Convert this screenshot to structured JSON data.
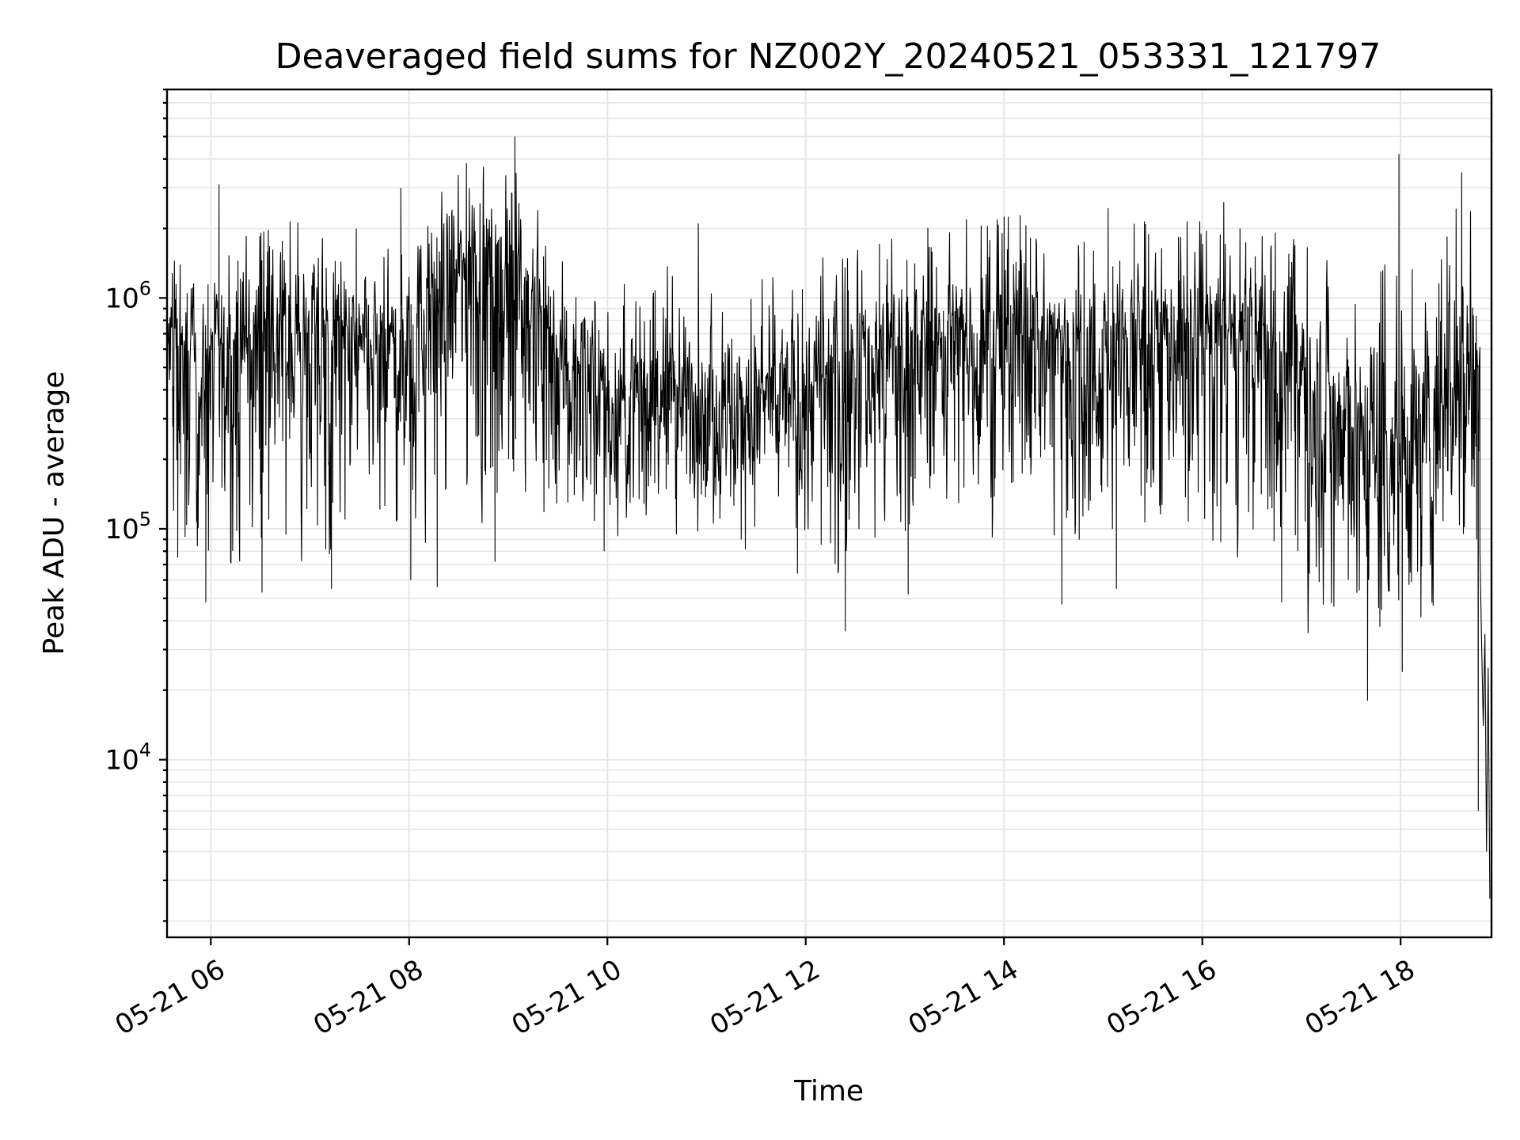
{
  "chart_data": {
    "type": "line",
    "title": "Deaveraged field sums for NZ002Y_20240521_053331_121797",
    "xlabel": "Time",
    "ylabel": "Peak ADU - average",
    "yscale": "log",
    "grid": true,
    "line_color": "#000000",
    "grid_color": "#e6e6e6",
    "xlim": [
      "2024-05-21 05:33:31",
      "2024-05-21 18:55:00"
    ],
    "ylim": [
      1700,
      8000000
    ],
    "x_ticks": [
      {
        "value": "2024-05-21 06:00",
        "label": "05-21 06"
      },
      {
        "value": "2024-05-21 08:00",
        "label": "05-21 08"
      },
      {
        "value": "2024-05-21 10:00",
        "label": "05-21 10"
      },
      {
        "value": "2024-05-21 12:00",
        "label": "05-21 12"
      },
      {
        "value": "2024-05-21 14:00",
        "label": "05-21 14"
      },
      {
        "value": "2024-05-21 16:00",
        "label": "05-21 16"
      },
      {
        "value": "2024-05-21 18:00",
        "label": "05-21 18"
      }
    ],
    "y_ticks": [
      {
        "value": 10000,
        "base": "10",
        "exp": "4"
      },
      {
        "value": 100000,
        "base": "10",
        "exp": "5"
      },
      {
        "value": 1000000,
        "base": "10",
        "exp": "6"
      }
    ],
    "envelope": {
      "x": [
        "2024-05-21 05:34",
        "2024-05-21 05:45",
        "2024-05-21 06:00",
        "2024-05-21 06:20",
        "2024-05-21 06:40",
        "2024-05-21 07:00",
        "2024-05-21 07:20",
        "2024-05-21 07:40",
        "2024-05-21 08:00",
        "2024-05-21 08:20",
        "2024-05-21 08:40",
        "2024-05-21 09:00",
        "2024-05-21 09:20",
        "2024-05-21 09:40",
        "2024-05-21 10:00",
        "2024-05-21 10:20",
        "2024-05-21 10:40",
        "2024-05-21 11:00",
        "2024-05-21 11:20",
        "2024-05-21 11:40",
        "2024-05-21 12:00",
        "2024-05-21 12:20",
        "2024-05-21 12:40",
        "2024-05-21 13:00",
        "2024-05-21 13:20",
        "2024-05-21 13:40",
        "2024-05-21 14:00",
        "2024-05-21 14:20",
        "2024-05-21 14:40",
        "2024-05-21 15:00",
        "2024-05-21 15:20",
        "2024-05-21 15:40",
        "2024-05-21 16:00",
        "2024-05-21 16:20",
        "2024-05-21 16:40",
        "2024-05-21 17:00",
        "2024-05-21 17:20",
        "2024-05-21 17:40",
        "2024-05-21 18:00",
        "2024-05-21 18:20",
        "2024-05-21 18:40",
        "2024-05-21 18:48"
      ],
      "median": [
        600000,
        550000,
        500000,
        650000,
        700000,
        650000,
        600000,
        550000,
        650000,
        1100000,
        1300000,
        1400000,
        800000,
        500000,
        350000,
        350000,
        400000,
        350000,
        300000,
        350000,
        400000,
        450000,
        550000,
        600000,
        650000,
        650000,
        700000,
        650000,
        600000,
        550000,
        650000,
        700000,
        700000,
        650000,
        600000,
        500000,
        300000,
        250000,
        250000,
        300000,
        600000,
        450000
      ],
      "low": [
        120000,
        90000,
        80000,
        90000,
        110000,
        100000,
        90000,
        100000,
        110000,
        160000,
        150000,
        170000,
        150000,
        130000,
        110000,
        110000,
        120000,
        100000,
        100000,
        110000,
        100000,
        80000,
        110000,
        120000,
        130000,
        120000,
        130000,
        120000,
        110000,
        110000,
        120000,
        140000,
        130000,
        120000,
        100000,
        80000,
        45000,
        40000,
        40000,
        55000,
        120000,
        90000
      ],
      "high": [
        1200000,
        1100000,
        1000000,
        1500000,
        1600000,
        1500000,
        1400000,
        1300000,
        1600000,
        3000000,
        3200000,
        3300000,
        2000000,
        1200000,
        800000,
        900000,
        1000000,
        900000,
        800000,
        900000,
        1000000,
        1200000,
        1300000,
        1400000,
        1500000,
        1600000,
        1700000,
        1600000,
        1400000,
        1300000,
        1500000,
        1600000,
        1600000,
        1500000,
        1500000,
        1300000,
        1100000,
        1000000,
        1100000,
        1200000,
        2500000,
        1500000
      ]
    },
    "spikes": [
      {
        "x": "2024-05-21 05:39",
        "y": 1150000
      },
      {
        "x": "2024-05-21 05:40",
        "y": 75000
      },
      {
        "x": "2024-05-21 05:57",
        "y": 48000
      },
      {
        "x": "2024-05-21 06:05",
        "y": 3100000
      },
      {
        "x": "2024-05-21 06:31",
        "y": 53000
      },
      {
        "x": "2024-05-21 07:13",
        "y": 55000
      },
      {
        "x": "2024-05-21 07:28",
        "y": 2000000
      },
      {
        "x": "2024-05-21 07:55",
        "y": 3000000
      },
      {
        "x": "2024-05-21 08:01",
        "y": 60000
      },
      {
        "x": "2024-05-21 08:17",
        "y": 56000
      },
      {
        "x": "2024-05-21 08:45",
        "y": 3700000
      },
      {
        "x": "2024-05-21 08:52",
        "y": 72000
      },
      {
        "x": "2024-05-21 09:04",
        "y": 5000000
      },
      {
        "x": "2024-05-21 09:36",
        "y": 130000
      },
      {
        "x": "2024-05-21 09:58",
        "y": 80000
      },
      {
        "x": "2024-05-21 10:55",
        "y": 2100000
      },
      {
        "x": "2024-05-21 11:55",
        "y": 64000
      },
      {
        "x": "2024-05-21 12:24",
        "y": 36000
      },
      {
        "x": "2024-05-21 13:02",
        "y": 52000
      },
      {
        "x": "2024-05-21 13:50",
        "y": 2050000
      },
      {
        "x": "2024-05-21 14:35",
        "y": 47000
      },
      {
        "x": "2024-05-21 15:03",
        "y": 2450000
      },
      {
        "x": "2024-05-21 15:08",
        "y": 55000
      },
      {
        "x": "2024-05-21 16:13",
        "y": 2600000
      },
      {
        "x": "2024-05-21 16:48",
        "y": 48000
      },
      {
        "x": "2024-05-21 17:40",
        "y": 18000
      },
      {
        "x": "2024-05-21 17:48",
        "y": 1300000
      },
      {
        "x": "2024-05-21 17:59",
        "y": 4200000
      },
      {
        "x": "2024-05-21 18:01",
        "y": 24000
      },
      {
        "x": "2024-05-21 18:37",
        "y": 3500000
      },
      {
        "x": "2024-05-21 18:38",
        "y": 95000
      }
    ],
    "tail": {
      "x": [
        "2024-05-21 18:42",
        "2024-05-21 18:44",
        "2024-05-21 18:46",
        "2024-05-21 18:47",
        "2024-05-21 18:48",
        "2024-05-21 18:49",
        "2024-05-21 18:50",
        "2024-05-21 18:51",
        "2024-05-21 18:52",
        "2024-05-21 18:53",
        "2024-05-21 18:54"
      ],
      "y": [
        500000,
        200000,
        90000,
        6000,
        80000,
        32000,
        14000,
        35000,
        4000,
        25000,
        2500
      ]
    }
  }
}
